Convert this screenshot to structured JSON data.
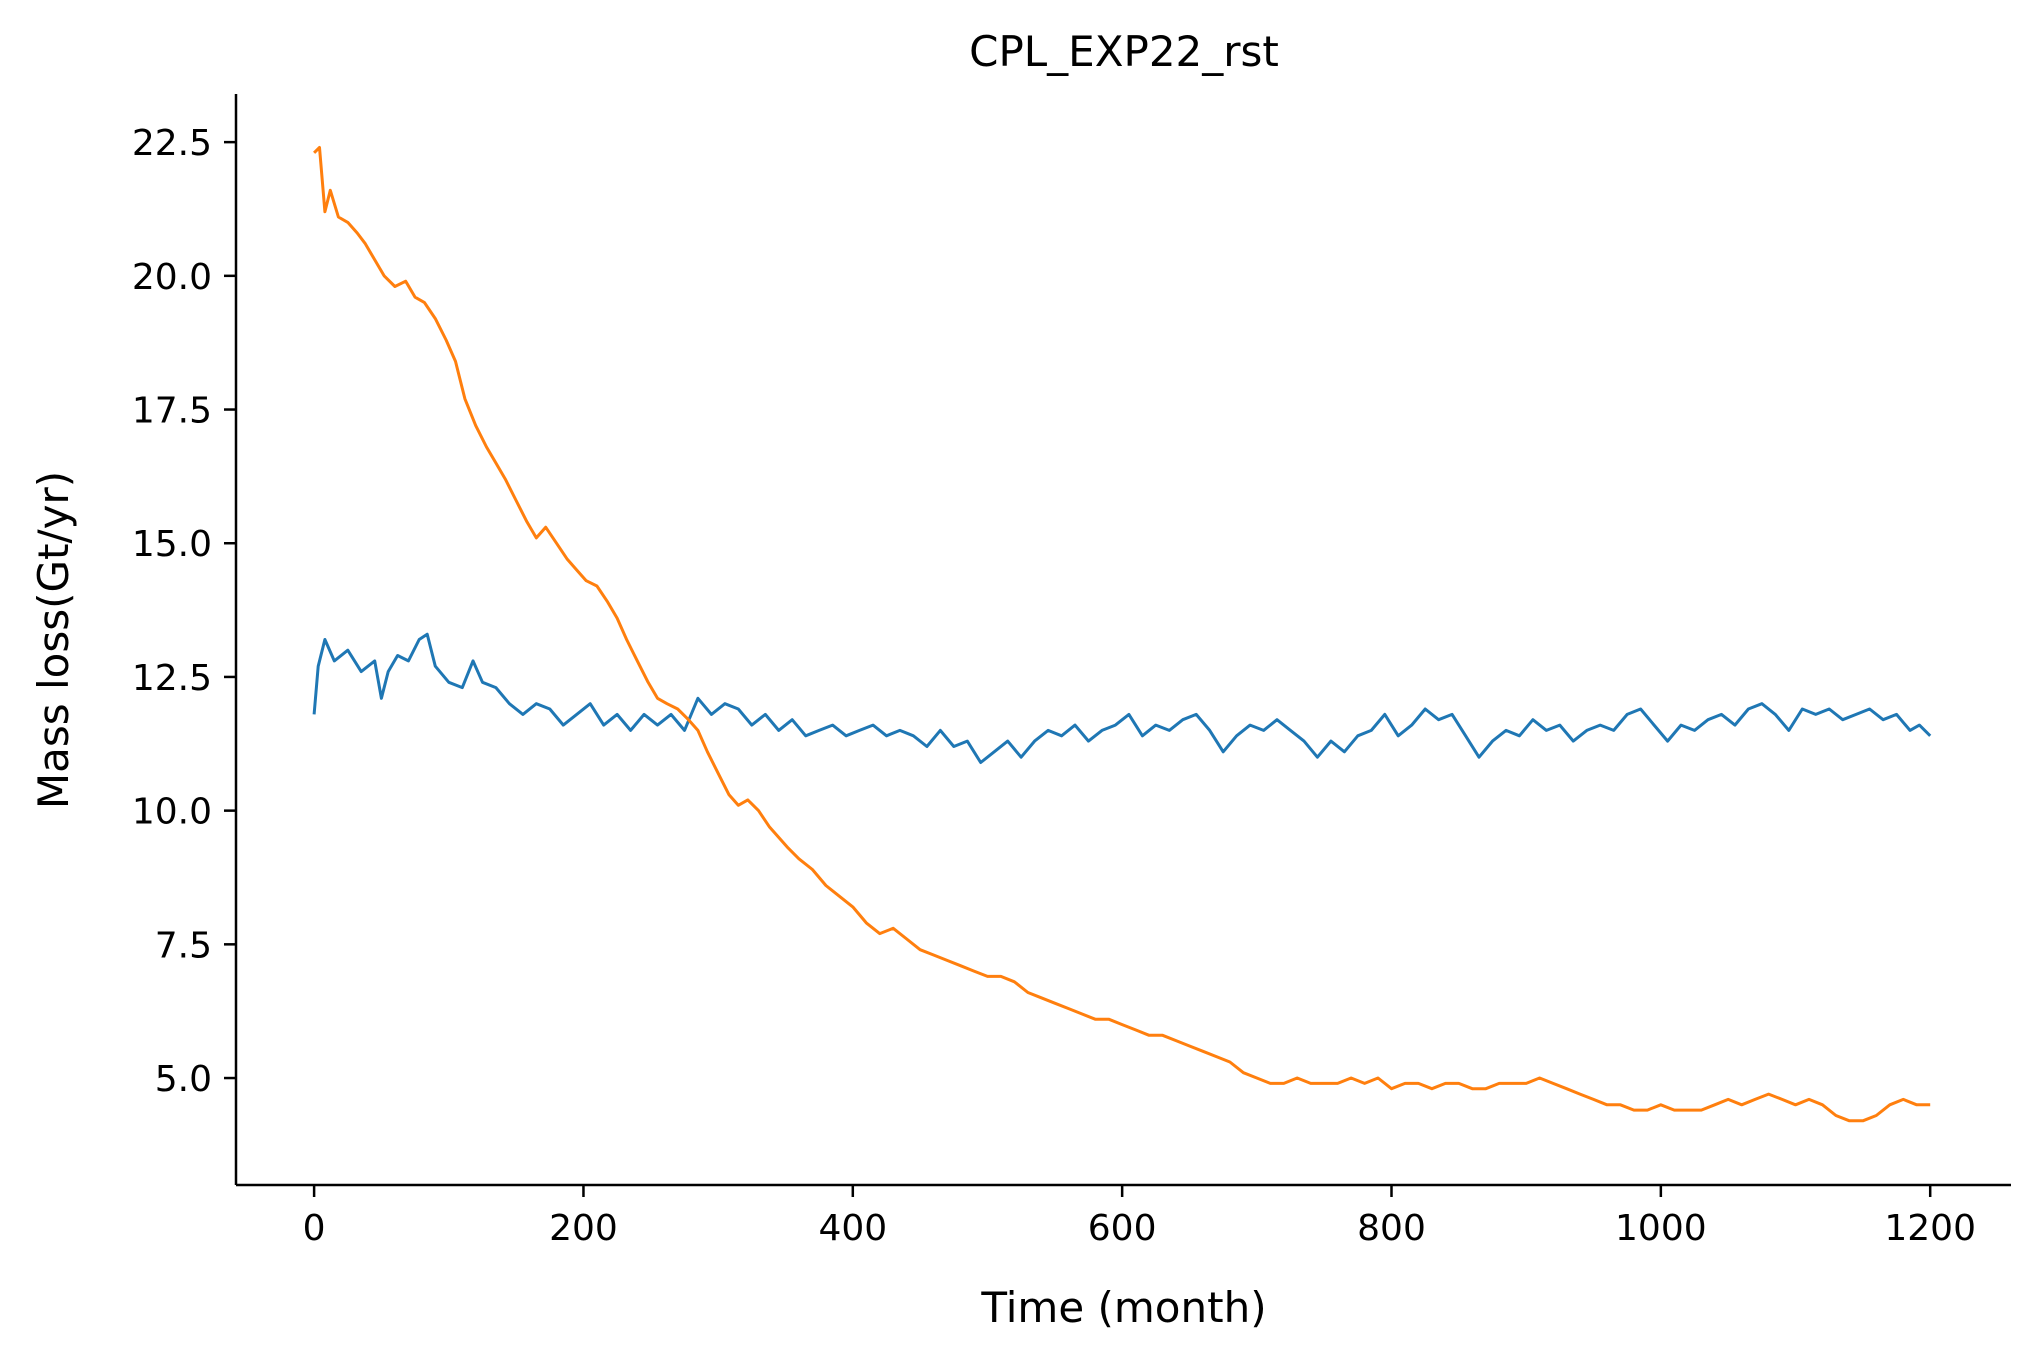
{
  "chart_data": {
    "type": "line",
    "title": "CPL_EXP22_rst",
    "xlabel": "Time (month)",
    "ylabel": "Mass loss(Gt/yr)",
    "xlim": [
      -58,
      1260
    ],
    "ylim": [
      3.0,
      23.4
    ],
    "x_ticks": [
      0,
      200,
      400,
      600,
      800,
      1000,
      1200
    ],
    "x_tick_labels": [
      "0",
      "200",
      "400",
      "600",
      "800",
      "1000",
      "1200"
    ],
    "y_ticks": [
      5.0,
      7.5,
      10.0,
      12.5,
      15.0,
      17.5,
      20.0,
      22.5
    ],
    "y_tick_labels": [
      "5.0",
      "7.5",
      "10.0",
      "12.5",
      "15.0",
      "17.5",
      "20.0",
      "22.5"
    ],
    "grid": false,
    "legend": "none",
    "series": [
      {
        "color": "#1f77b4",
        "points": [
          [
            0,
            11.8
          ],
          [
            3,
            12.7
          ],
          [
            8,
            13.2
          ],
          [
            15,
            12.8
          ],
          [
            25,
            13.0
          ],
          [
            35,
            12.6
          ],
          [
            45,
            12.8
          ],
          [
            50,
            12.1
          ],
          [
            55,
            12.6
          ],
          [
            62,
            12.9
          ],
          [
            70,
            12.8
          ],
          [
            78,
            13.2
          ],
          [
            84,
            13.3
          ],
          [
            90,
            12.7
          ],
          [
            100,
            12.4
          ],
          [
            110,
            12.3
          ],
          [
            118,
            12.8
          ],
          [
            125,
            12.4
          ],
          [
            135,
            12.3
          ],
          [
            145,
            12.0
          ],
          [
            155,
            11.8
          ],
          [
            165,
            12.0
          ],
          [
            175,
            11.9
          ],
          [
            185,
            11.6
          ],
          [
            195,
            11.8
          ],
          [
            205,
            12.0
          ],
          [
            215,
            11.6
          ],
          [
            225,
            11.8
          ],
          [
            235,
            11.5
          ],
          [
            245,
            11.8
          ],
          [
            255,
            11.6
          ],
          [
            265,
            11.8
          ],
          [
            275,
            11.5
          ],
          [
            285,
            12.1
          ],
          [
            295,
            11.8
          ],
          [
            305,
            12.0
          ],
          [
            315,
            11.9
          ],
          [
            325,
            11.6
          ],
          [
            335,
            11.8
          ],
          [
            345,
            11.5
          ],
          [
            355,
            11.7
          ],
          [
            365,
            11.4
          ],
          [
            375,
            11.5
          ],
          [
            385,
            11.6
          ],
          [
            395,
            11.4
          ],
          [
            405,
            11.5
          ],
          [
            415,
            11.6
          ],
          [
            425,
            11.4
          ],
          [
            435,
            11.5
          ],
          [
            445,
            11.4
          ],
          [
            455,
            11.2
          ],
          [
            465,
            11.5
          ],
          [
            475,
            11.2
          ],
          [
            485,
            11.3
          ],
          [
            495,
            10.9
          ],
          [
            505,
            11.1
          ],
          [
            515,
            11.3
          ],
          [
            525,
            11.0
          ],
          [
            535,
            11.3
          ],
          [
            545,
            11.5
          ],
          [
            555,
            11.4
          ],
          [
            565,
            11.6
          ],
          [
            575,
            11.3
          ],
          [
            585,
            11.5
          ],
          [
            595,
            11.6
          ],
          [
            605,
            11.8
          ],
          [
            615,
            11.4
          ],
          [
            625,
            11.6
          ],
          [
            635,
            11.5
          ],
          [
            645,
            11.7
          ],
          [
            655,
            11.8
          ],
          [
            665,
            11.5
          ],
          [
            675,
            11.1
          ],
          [
            685,
            11.4
          ],
          [
            695,
            11.6
          ],
          [
            705,
            11.5
          ],
          [
            715,
            11.7
          ],
          [
            725,
            11.5
          ],
          [
            735,
            11.3
          ],
          [
            745,
            11.0
          ],
          [
            755,
            11.3
          ],
          [
            765,
            11.1
          ],
          [
            775,
            11.4
          ],
          [
            785,
            11.5
          ],
          [
            795,
            11.8
          ],
          [
            805,
            11.4
          ],
          [
            815,
            11.6
          ],
          [
            825,
            11.9
          ],
          [
            835,
            11.7
          ],
          [
            845,
            11.8
          ],
          [
            855,
            11.4
          ],
          [
            865,
            11.0
          ],
          [
            875,
            11.3
          ],
          [
            885,
            11.5
          ],
          [
            895,
            11.4
          ],
          [
            905,
            11.7
          ],
          [
            915,
            11.5
          ],
          [
            925,
            11.6
          ],
          [
            935,
            11.3
          ],
          [
            945,
            11.5
          ],
          [
            955,
            11.6
          ],
          [
            965,
            11.5
          ],
          [
            975,
            11.8
          ],
          [
            985,
            11.9
          ],
          [
            995,
            11.6
          ],
          [
            1005,
            11.3
          ],
          [
            1015,
            11.6
          ],
          [
            1025,
            11.5
          ],
          [
            1035,
            11.7
          ],
          [
            1045,
            11.8
          ],
          [
            1055,
            11.6
          ],
          [
            1065,
            11.9
          ],
          [
            1075,
            12.0
          ],
          [
            1085,
            11.8
          ],
          [
            1095,
            11.5
          ],
          [
            1105,
            11.9
          ],
          [
            1115,
            11.8
          ],
          [
            1125,
            11.9
          ],
          [
            1135,
            11.7
          ],
          [
            1145,
            11.8
          ],
          [
            1155,
            11.9
          ],
          [
            1165,
            11.7
          ],
          [
            1175,
            11.8
          ],
          [
            1185,
            11.5
          ],
          [
            1192,
            11.6
          ],
          [
            1200,
            11.4
          ]
        ]
      },
      {
        "color": "#ff7f0e",
        "points": [
          [
            0,
            22.3
          ],
          [
            4,
            22.4
          ],
          [
            8,
            21.2
          ],
          [
            12,
            21.6
          ],
          [
            18,
            21.1
          ],
          [
            25,
            21.0
          ],
          [
            32,
            20.8
          ],
          [
            38,
            20.6
          ],
          [
            45,
            20.3
          ],
          [
            52,
            20.0
          ],
          [
            60,
            19.8
          ],
          [
            68,
            19.9
          ],
          [
            75,
            19.6
          ],
          [
            82,
            19.5
          ],
          [
            90,
            19.2
          ],
          [
            98,
            18.8
          ],
          [
            105,
            18.4
          ],
          [
            112,
            17.7
          ],
          [
            120,
            17.2
          ],
          [
            128,
            16.8
          ],
          [
            135,
            16.5
          ],
          [
            142,
            16.2
          ],
          [
            150,
            15.8
          ],
          [
            158,
            15.4
          ],
          [
            165,
            15.1
          ],
          [
            172,
            15.3
          ],
          [
            180,
            15.0
          ],
          [
            188,
            14.7
          ],
          [
            195,
            14.5
          ],
          [
            202,
            14.3
          ],
          [
            210,
            14.2
          ],
          [
            218,
            13.9
          ],
          [
            225,
            13.6
          ],
          [
            232,
            13.2
          ],
          [
            240,
            12.8
          ],
          [
            248,
            12.4
          ],
          [
            255,
            12.1
          ],
          [
            262,
            12.0
          ],
          [
            270,
            11.9
          ],
          [
            278,
            11.7
          ],
          [
            285,
            11.5
          ],
          [
            292,
            11.1
          ],
          [
            300,
            10.7
          ],
          [
            308,
            10.3
          ],
          [
            315,
            10.1
          ],
          [
            322,
            10.2
          ],
          [
            330,
            10.0
          ],
          [
            338,
            9.7
          ],
          [
            345,
            9.5
          ],
          [
            352,
            9.3
          ],
          [
            360,
            9.1
          ],
          [
            370,
            8.9
          ],
          [
            380,
            8.6
          ],
          [
            390,
            8.4
          ],
          [
            400,
            8.2
          ],
          [
            410,
            7.9
          ],
          [
            420,
            7.7
          ],
          [
            430,
            7.8
          ],
          [
            440,
            7.6
          ],
          [
            450,
            7.4
          ],
          [
            460,
            7.3
          ],
          [
            470,
            7.2
          ],
          [
            480,
            7.1
          ],
          [
            490,
            7.0
          ],
          [
            500,
            6.9
          ],
          [
            510,
            6.9
          ],
          [
            520,
            6.8
          ],
          [
            530,
            6.6
          ],
          [
            540,
            6.5
          ],
          [
            550,
            6.4
          ],
          [
            560,
            6.3
          ],
          [
            570,
            6.2
          ],
          [
            580,
            6.1
          ],
          [
            590,
            6.1
          ],
          [
            600,
            6.0
          ],
          [
            610,
            5.9
          ],
          [
            620,
            5.8
          ],
          [
            630,
            5.8
          ],
          [
            640,
            5.7
          ],
          [
            650,
            5.6
          ],
          [
            660,
            5.5
          ],
          [
            670,
            5.4
          ],
          [
            680,
            5.3
          ],
          [
            690,
            5.1
          ],
          [
            700,
            5.0
          ],
          [
            710,
            4.9
          ],
          [
            720,
            4.9
          ],
          [
            730,
            5.0
          ],
          [
            740,
            4.9
          ],
          [
            750,
            4.9
          ],
          [
            760,
            4.9
          ],
          [
            770,
            5.0
          ],
          [
            780,
            4.9
          ],
          [
            790,
            5.0
          ],
          [
            800,
            4.8
          ],
          [
            810,
            4.9
          ],
          [
            820,
            4.9
          ],
          [
            830,
            4.8
          ],
          [
            840,
            4.9
          ],
          [
            850,
            4.9
          ],
          [
            860,
            4.8
          ],
          [
            870,
            4.8
          ],
          [
            880,
            4.9
          ],
          [
            890,
            4.9
          ],
          [
            900,
            4.9
          ],
          [
            910,
            5.0
          ],
          [
            920,
            4.9
          ],
          [
            930,
            4.8
          ],
          [
            940,
            4.7
          ],
          [
            950,
            4.6
          ],
          [
            960,
            4.5
          ],
          [
            970,
            4.5
          ],
          [
            980,
            4.4
          ],
          [
            990,
            4.4
          ],
          [
            1000,
            4.5
          ],
          [
            1010,
            4.4
          ],
          [
            1020,
            4.4
          ],
          [
            1030,
            4.4
          ],
          [
            1040,
            4.5
          ],
          [
            1050,
            4.6
          ],
          [
            1060,
            4.5
          ],
          [
            1070,
            4.6
          ],
          [
            1080,
            4.7
          ],
          [
            1090,
            4.6
          ],
          [
            1100,
            4.5
          ],
          [
            1110,
            4.6
          ],
          [
            1120,
            4.5
          ],
          [
            1130,
            4.3
          ],
          [
            1140,
            4.2
          ],
          [
            1150,
            4.2
          ],
          [
            1160,
            4.3
          ],
          [
            1170,
            4.5
          ],
          [
            1180,
            4.6
          ],
          [
            1190,
            4.5
          ],
          [
            1200,
            4.5
          ]
        ]
      }
    ]
  }
}
